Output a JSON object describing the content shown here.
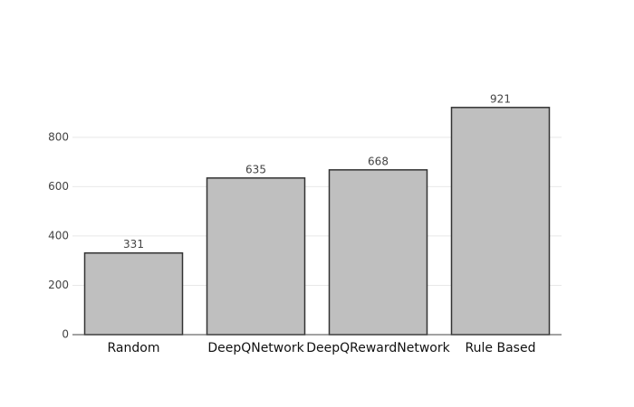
{
  "chart_data": {
    "type": "bar",
    "categories": [
      "Random",
      "DeepQNetwork",
      "DeepQRewardNetwork",
      "Rule Based"
    ],
    "values": [
      331,
      635,
      668,
      921
    ],
    "color": "#bfbfbf",
    "ylim": [
      0,
      990
    ],
    "yticks": [
      0,
      200,
      400,
      600,
      800
    ],
    "grid": true
  }
}
